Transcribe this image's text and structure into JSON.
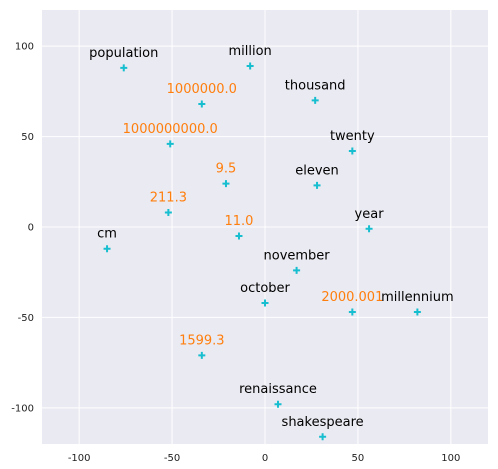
{
  "chart_data": {
    "type": "scatter",
    "title": "",
    "xlabel": "",
    "ylabel": "",
    "xlim": [
      -120,
      120
    ],
    "ylim": [
      -120,
      120
    ],
    "xticks": [
      -100,
      -50,
      0,
      50,
      100
    ],
    "yticks": [
      -100,
      -50,
      0,
      50,
      100
    ],
    "grid": true,
    "marker": "plus",
    "marker_color": "#17becf",
    "word_label_color": "#000000",
    "number_label_color": "#ff7f0e",
    "background_color": "#eaeaf2",
    "points": [
      {
        "label": "population",
        "x": -76,
        "y": 88,
        "kind": "word"
      },
      {
        "label": "million",
        "x": -8,
        "y": 89,
        "kind": "word"
      },
      {
        "label": "1000000.0",
        "x": -34,
        "y": 68,
        "kind": "number"
      },
      {
        "label": "thousand",
        "x": 27,
        "y": 70,
        "kind": "word"
      },
      {
        "label": "1000000000.0",
        "x": -51,
        "y": 46,
        "kind": "number"
      },
      {
        "label": "twenty",
        "x": 47,
        "y": 42,
        "kind": "word"
      },
      {
        "label": "9.5",
        "x": -21,
        "y": 24,
        "kind": "number"
      },
      {
        "label": "eleven",
        "x": 28,
        "y": 23,
        "kind": "word"
      },
      {
        "label": "211.3",
        "x": -52,
        "y": 8,
        "kind": "number"
      },
      {
        "label": "year",
        "x": 56,
        "y": -1,
        "kind": "word"
      },
      {
        "label": "11.0",
        "x": -14,
        "y": -5,
        "kind": "number"
      },
      {
        "label": "cm",
        "x": -85,
        "y": -12,
        "kind": "word"
      },
      {
        "label": "november",
        "x": 17,
        "y": -24,
        "kind": "word"
      },
      {
        "label": "october",
        "x": 0,
        "y": -42,
        "kind": "word"
      },
      {
        "label": "2000.001",
        "x": 47,
        "y": -47,
        "kind": "number"
      },
      {
        "label": "millennium",
        "x": 82,
        "y": -47,
        "kind": "word"
      },
      {
        "label": "1599.3",
        "x": -34,
        "y": -71,
        "kind": "number"
      },
      {
        "label": "renaissance",
        "x": 7,
        "y": -98,
        "kind": "word"
      },
      {
        "label": "shakespeare",
        "x": 31,
        "y": -116,
        "kind": "word"
      }
    ]
  }
}
